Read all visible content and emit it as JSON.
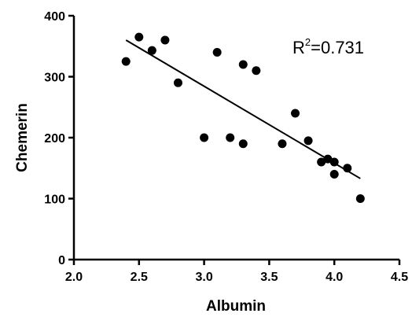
{
  "chart_data": {
    "type": "scatter",
    "xlabel": "Albumin",
    "ylabel": "Chemerin",
    "xlim": [
      2.0,
      4.5
    ],
    "ylim": [
      0,
      400
    ],
    "xticks": [
      "2.0",
      "2.5",
      "3.0",
      "3.5",
      "4.0",
      "4.5"
    ],
    "yticks": [
      "0",
      "100",
      "200",
      "300",
      "400"
    ],
    "grid": false,
    "annotation": {
      "base": "R",
      "sup": "2",
      "value": "=0.731"
    },
    "points": [
      {
        "x": 2.4,
        "y": 325
      },
      {
        "x": 2.5,
        "y": 365
      },
      {
        "x": 2.6,
        "y": 343
      },
      {
        "x": 2.7,
        "y": 360
      },
      {
        "x": 2.8,
        "y": 290
      },
      {
        "x": 3.0,
        "y": 200
      },
      {
        "x": 3.1,
        "y": 340
      },
      {
        "x": 3.2,
        "y": 200
      },
      {
        "x": 3.3,
        "y": 320
      },
      {
        "x": 3.3,
        "y": 190
      },
      {
        "x": 3.4,
        "y": 310
      },
      {
        "x": 3.6,
        "y": 190
      },
      {
        "x": 3.7,
        "y": 240
      },
      {
        "x": 3.8,
        "y": 195
      },
      {
        "x": 3.9,
        "y": 160
      },
      {
        "x": 3.95,
        "y": 165
      },
      {
        "x": 4.0,
        "y": 160
      },
      {
        "x": 4.0,
        "y": 140
      },
      {
        "x": 4.1,
        "y": 150
      },
      {
        "x": 4.2,
        "y": 100
      }
    ],
    "regression_line": {
      "x": [
        2.4,
        4.2
      ],
      "y": [
        360,
        133
      ]
    }
  }
}
